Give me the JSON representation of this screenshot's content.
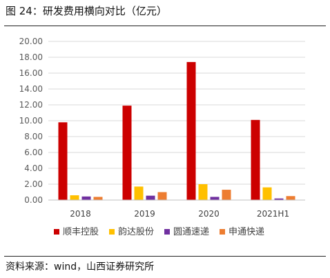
{
  "figure": {
    "title": "图 24：研发费用横向对比（亿元）",
    "source": "资料来源：wind，山西证券研究所"
  },
  "chart_data": {
    "type": "bar",
    "title": "",
    "xlabel": "",
    "ylabel": "",
    "categories": [
      "2018",
      "2019",
      "2020",
      "2021H1"
    ],
    "series": [
      {
        "name": "顺丰控股",
        "color": "#cc0000",
        "values": [
          9.8,
          11.9,
          17.4,
          10.1
        ]
      },
      {
        "name": "韵达股份",
        "color": "#ffc000",
        "values": [
          0.6,
          1.7,
          2.0,
          1.6
        ]
      },
      {
        "name": "圆通速递",
        "color": "#7030a0",
        "values": [
          0.45,
          0.55,
          0.4,
          0.2
        ]
      },
      {
        "name": "申通快递",
        "color": "#ed7d31",
        "values": [
          0.4,
          1.0,
          1.3,
          0.5
        ]
      }
    ],
    "ylim": [
      0,
      20
    ],
    "ytick_step": 2,
    "ytick_labels": [
      "0.00",
      "2.00",
      "4.00",
      "6.00",
      "8.00",
      "10.00",
      "12.00",
      "14.00",
      "16.00",
      "18.00",
      "20.00"
    ],
    "grid": true,
    "legend_position": "bottom"
  }
}
